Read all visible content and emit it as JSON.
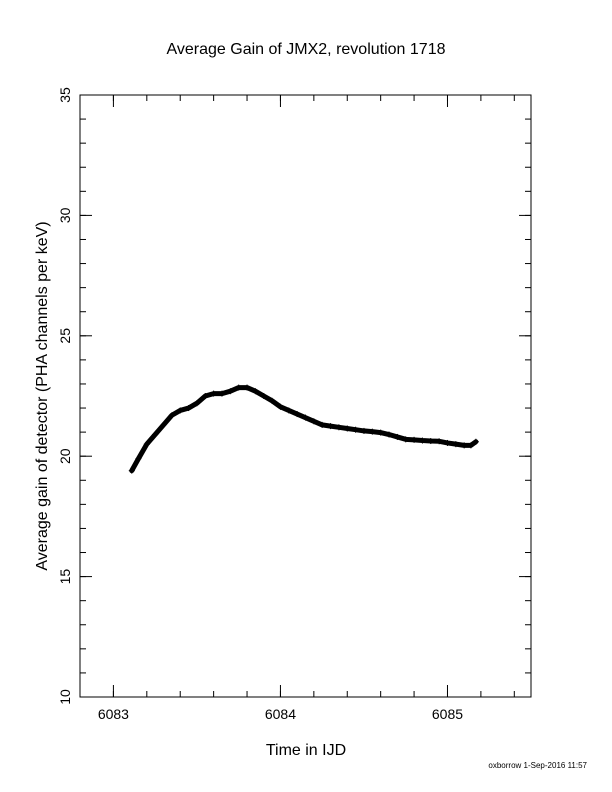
{
  "chart_data": {
    "type": "line",
    "title": "Average Gain of JMX2, revolution 1718",
    "xlabel": "Time in IJD",
    "ylabel": "Average gain of detector (PHA channels per keV)",
    "xlim": [
      6082.8,
      6085.5
    ],
    "ylim": [
      10,
      35
    ],
    "x_ticks": [
      6083,
      6084,
      6085
    ],
    "y_ticks": [
      10,
      15,
      20,
      25,
      30,
      35
    ],
    "grid": false,
    "legend": "none",
    "series": [
      {
        "color": "#000000",
        "x": [
          6083.11,
          6083.15,
          6083.2,
          6083.25,
          6083.3,
          6083.35,
          6083.4,
          6083.45,
          6083.5,
          6083.55,
          6083.6,
          6083.65,
          6083.7,
          6083.75,
          6083.8,
          6083.85,
          6083.9,
          6083.95,
          6084.0,
          6084.05,
          6084.1,
          6084.15,
          6084.2,
          6084.25,
          6084.3,
          6084.35,
          6084.4,
          6084.45,
          6084.5,
          6084.55,
          6084.6,
          6084.65,
          6084.7,
          6084.75,
          6084.8,
          6084.85,
          6084.9,
          6084.95,
          6085.0,
          6085.05,
          6085.1,
          6085.14,
          6085.17
        ],
        "values": [
          19.4,
          19.9,
          20.5,
          20.9,
          21.3,
          21.7,
          21.9,
          22.0,
          22.2,
          22.5,
          22.6,
          22.6,
          22.7,
          22.85,
          22.85,
          22.7,
          22.5,
          22.3,
          22.05,
          21.9,
          21.75,
          21.6,
          21.45,
          21.3,
          21.25,
          21.2,
          21.15,
          21.1,
          21.05,
          21.02,
          20.98,
          20.9,
          20.8,
          20.7,
          20.68,
          20.65,
          20.63,
          20.62,
          20.55,
          20.5,
          20.45,
          20.45,
          20.6
        ]
      }
    ]
  },
  "footer": {
    "stamp": "oxborrow  1-Sep-2016 11:57"
  }
}
